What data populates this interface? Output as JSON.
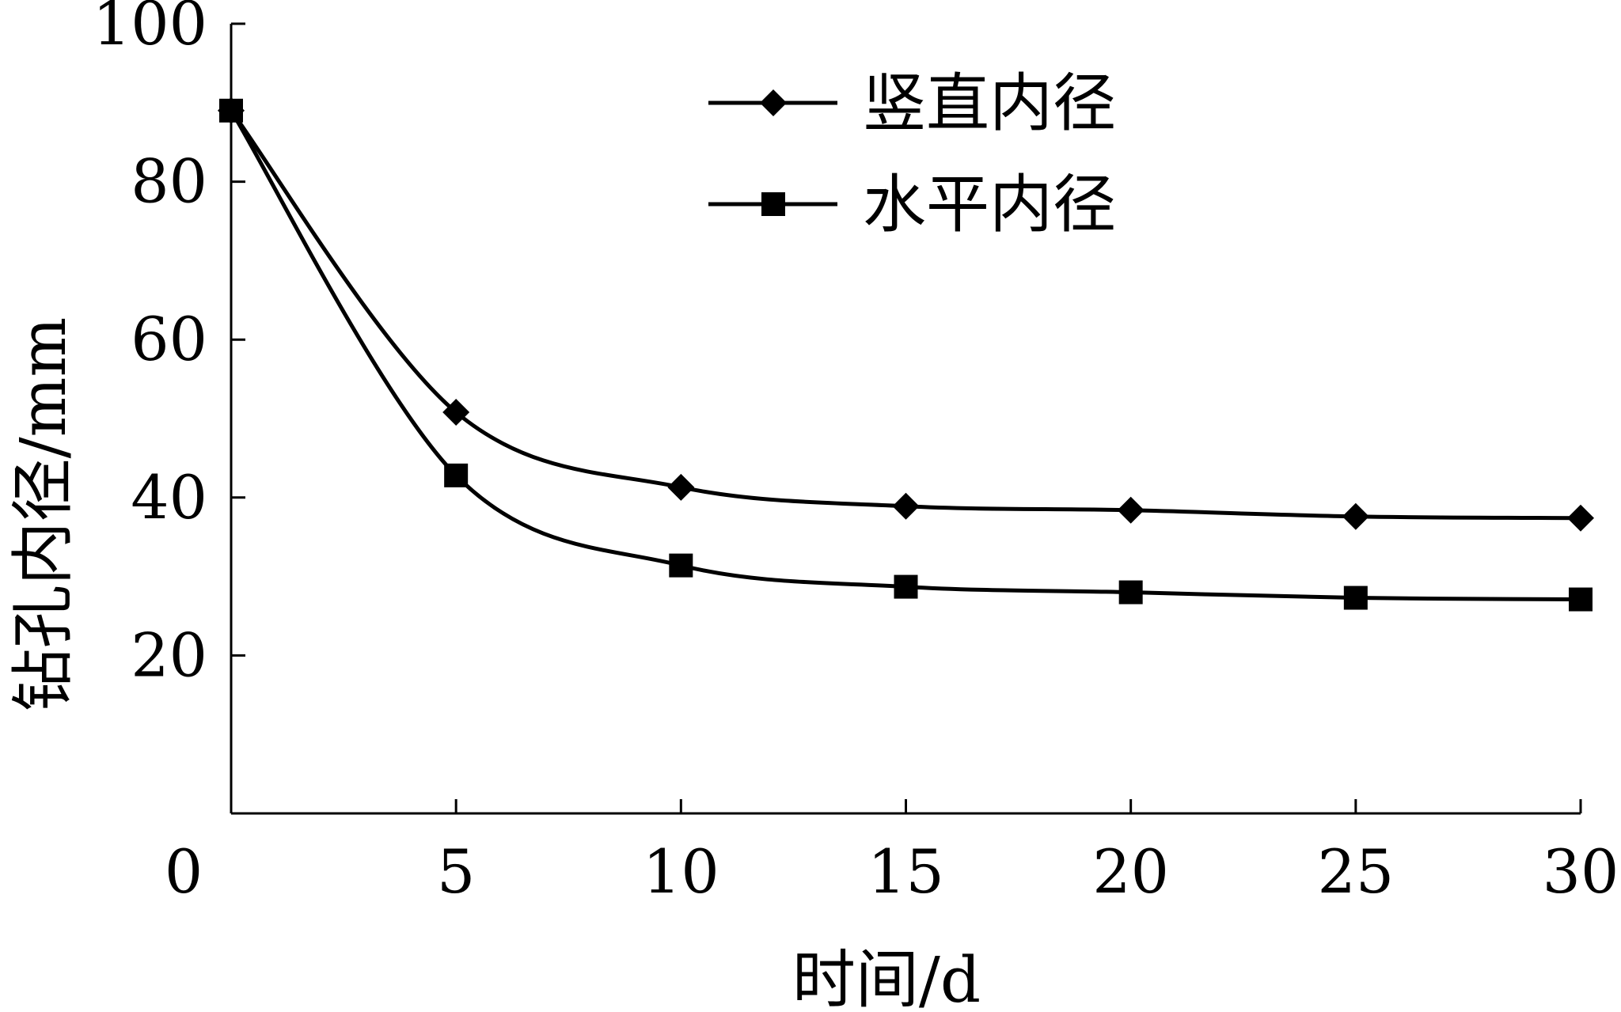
{
  "chart_data": {
    "type": "line",
    "title": "",
    "xlabel": "时间/d",
    "ylabel": "钻孔内径/mm",
    "xlim": [
      0,
      30
    ],
    "ylim": [
      0,
      100
    ],
    "xticks": [
      0,
      5,
      10,
      15,
      20,
      25,
      30
    ],
    "yticks": [
      20,
      40,
      60,
      80,
      100
    ],
    "grid": false,
    "legend_position": "top-center",
    "line_color": "#000000",
    "series": [
      {
        "name": "竖直内径",
        "marker": "diamond",
        "x": [
          0,
          5,
          10,
          15,
          20,
          25,
          30
        ],
        "y": [
          89,
          50.8,
          41.3,
          38.9,
          38.4,
          37.6,
          37.4
        ]
      },
      {
        "name": "水平内径",
        "marker": "square",
        "x": [
          0,
          5,
          10,
          15,
          20,
          25,
          30
        ],
        "y": [
          89,
          42.8,
          31.4,
          28.7,
          28.0,
          27.3,
          27.1
        ]
      }
    ]
  }
}
